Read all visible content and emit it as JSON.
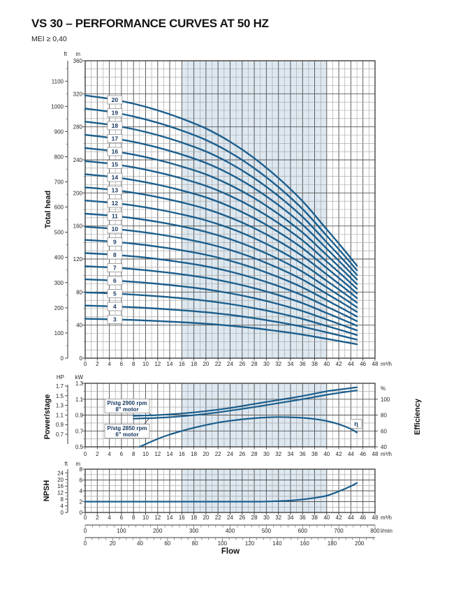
{
  "meta": {
    "title": "VS 30 – PERFORMANCE CURVES AT 50 HZ",
    "mei": "MEI ≥ 0,40"
  },
  "labels": {
    "total_head": "Total head",
    "power_stage": "Power/stage",
    "efficiency": "Efficiency",
    "npsh": "NPSH",
    "flow": "Flow"
  },
  "units": {
    "flow_m3h": "m³/h",
    "flow_lmin": "l/min",
    "ft": "ft",
    "m": "m",
    "hp": "HP",
    "kw": "kW",
    "pct": "%"
  },
  "chart_data": {
    "type": "line",
    "colors": {
      "curve": "#1b5e8d",
      "band": "#dde8f0",
      "grid_minor": "#9e9e9e",
      "grid_major": "#555555"
    },
    "duty_band_m3h": [
      16,
      40
    ],
    "flow_axis": {
      "m3h_ticks": [
        0,
        2,
        4,
        6,
        8,
        10,
        12,
        14,
        16,
        18,
        20,
        22,
        24,
        26,
        28,
        30,
        32,
        34,
        36,
        38,
        40,
        42,
        44,
        46,
        48
      ],
      "lmin_ticks": [
        0,
        100,
        200,
        300,
        400,
        500,
        600,
        700,
        800
      ],
      "usgpm_ticks": [
        0,
        20,
        40,
        60,
        80,
        100,
        120,
        140,
        160,
        180,
        200
      ],
      "m3h_range": [
        0,
        48
      ],
      "lmin_range": [
        0,
        800
      ]
    },
    "head_panel": {
      "ylabel_left_m_ticks": [
        0,
        40,
        80,
        120,
        160,
        200,
        240,
        280,
        320,
        360
      ],
      "ylabel_left_ft_ticks": [
        0,
        100,
        200,
        300,
        400,
        500,
        600,
        700,
        800,
        900,
        1000,
        1100
      ],
      "y_range_m": [
        0,
        360
      ],
      "stages": [
        3,
        4,
        5,
        6,
        7,
        8,
        9,
        10,
        11,
        12,
        13,
        14,
        15,
        16,
        17,
        18,
        19,
        20
      ],
      "q_samples_m3h": [
        0,
        4,
        8,
        12,
        16,
        20,
        24,
        28,
        32,
        36,
        40,
        43,
        45
      ],
      "head_per_stage_m": [
        15.9,
        15.7,
        15.4,
        15.0,
        14.5,
        13.9,
        13.1,
        12.1,
        10.9,
        9.5,
        7.8,
        6.5,
        5.6
      ],
      "stage_label_at_m3h": 4.9
    },
    "power_panel": {
      "kw_ticks": [
        0.5,
        0.7,
        0.9,
        1.1,
        1.3
      ],
      "hp_ticks": [
        0.7,
        0.9,
        1.1,
        1.3,
        1.5,
        1.7
      ],
      "eff_ticks_pct": [
        40,
        60,
        80,
        100
      ],
      "kw_range": [
        0.5,
        1.3
      ],
      "eff_range_pct": [
        40,
        120
      ],
      "series": [
        {
          "name": "P/stg 2900 rpm 8\" motor",
          "x_m3h": [
            8,
            12,
            16,
            20,
            24,
            28,
            32,
            36,
            40,
            43,
            45
          ],
          "kw": [
            0.89,
            0.9,
            0.92,
            0.95,
            0.99,
            1.04,
            1.09,
            1.14,
            1.2,
            1.23,
            1.25
          ]
        },
        {
          "name": "P/stg 2850 rpm 6\" motor",
          "x_m3h": [
            8,
            12,
            16,
            20,
            24,
            28,
            32,
            36,
            40,
            43,
            45
          ],
          "kw": [
            0.855,
            0.865,
            0.885,
            0.915,
            0.955,
            1.0,
            1.05,
            1.1,
            1.155,
            1.19,
            1.21
          ]
        },
        {
          "name": "efficiency",
          "x_m3h": [
            9,
            12,
            14,
            16,
            18,
            20,
            22,
            24,
            26,
            28,
            30,
            32,
            34,
            36,
            38,
            40,
            42,
            44,
            45
          ],
          "pct": [
            40,
            50,
            55.5,
            60,
            64,
            67.5,
            70.5,
            72.8,
            74.6,
            76,
            77,
            77.5,
            77.3,
            76.5,
            75,
            72.5,
            68.5,
            62.5,
            58
          ]
        }
      ],
      "annotations": {
        "box1_line1": "P/stg 2900 rpm",
        "box1_line2": "8\" motor",
        "box2_line1": "P/stg 2850 rpm",
        "box2_line2": "6\" motor",
        "eta": "η"
      }
    },
    "npsh_panel": {
      "m_ticks": [
        0,
        2,
        4,
        6,
        8
      ],
      "ft_ticks": [
        0,
        4,
        8,
        12,
        16,
        20,
        24
      ],
      "y_range_m": [
        0,
        8
      ],
      "x_m3h": [
        0,
        8,
        16,
        24,
        28,
        30,
        32,
        34,
        36,
        38,
        40,
        42,
        44,
        45
      ],
      "npsh_m": [
        2.0,
        2.0,
        2.0,
        2.0,
        2.0,
        2.02,
        2.1,
        2.2,
        2.4,
        2.7,
        3.1,
        3.9,
        4.85,
        5.45
      ]
    }
  }
}
